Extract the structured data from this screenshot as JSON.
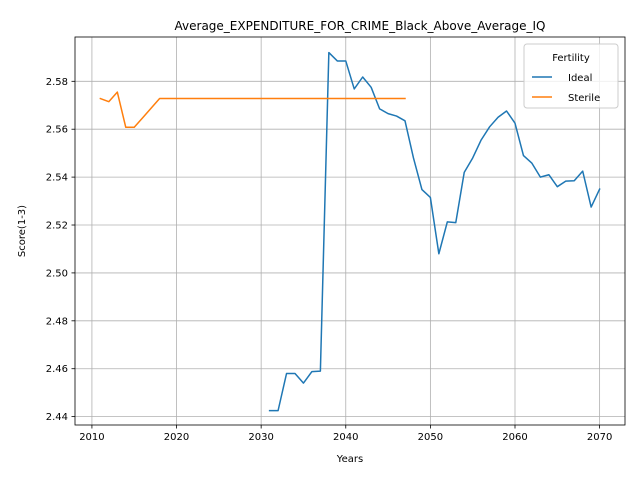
{
  "chart_data": {
    "type": "line",
    "title": "Average_EXPENDITURE_FOR_CRIME_Black_Above_Average_IQ",
    "xlabel": "Years",
    "ylabel": "Score(1-3)",
    "xlim": [
      2008,
      2073
    ],
    "ylim": [
      2.4365,
      2.5985
    ],
    "xticks": [
      2010,
      2020,
      2030,
      2040,
      2050,
      2060,
      2070
    ],
    "yticks": [
      2.44,
      2.46,
      2.48,
      2.5,
      2.52,
      2.54,
      2.56,
      2.58
    ],
    "ytick_labels": [
      "2.44",
      "2.46",
      "2.48",
      "2.50",
      "2.52",
      "2.54",
      "2.56",
      "2.58"
    ],
    "grid": true,
    "legend": {
      "title": "Fertility",
      "placement": "top-right"
    },
    "series": [
      {
        "name": "Ideal",
        "color": "#1f77b4",
        "x": [
          2031,
          2032,
          2033,
          2034,
          2035,
          2036,
          2037,
          2038,
          2039,
          2040,
          2041,
          2042,
          2043,
          2044,
          2045,
          2046,
          2047,
          2048,
          2049,
          2050,
          2051,
          2052,
          2053,
          2054,
          2055,
          2056,
          2057,
          2058,
          2059,
          2060,
          2061,
          2062,
          2063,
          2064,
          2065,
          2066,
          2067,
          2068,
          2069,
          2070
        ],
        "y": [
          2.4425,
          2.4425,
          2.458,
          2.458,
          2.454,
          2.4588,
          2.459,
          2.592,
          2.5885,
          2.5885,
          2.5768,
          2.5818,
          2.5775,
          2.5685,
          2.5665,
          2.5655,
          2.5635,
          2.548,
          2.5348,
          2.5315,
          2.508,
          2.5213,
          2.521,
          2.542,
          2.548,
          2.5555,
          2.561,
          2.565,
          2.5676,
          2.5625,
          2.549,
          2.5458,
          2.54,
          2.541,
          2.536,
          2.5383,
          2.5385,
          2.5425,
          2.5275,
          2.535
        ]
      },
      {
        "name": "Sterile",
        "color": "#ff7f0e",
        "x": [
          2011,
          2012,
          2013,
          2014,
          2015,
          2016,
          2017,
          2018,
          2019,
          2020,
          2021,
          2022,
          2023,
          2024,
          2025,
          2026,
          2027,
          2028,
          2029,
          2030,
          2031,
          2032,
          2033,
          2034,
          2035,
          2036,
          2037,
          2038,
          2039,
          2040,
          2041,
          2042,
          2043,
          2044,
          2045,
          2046,
          2047
        ],
        "y": [
          2.5728,
          2.5715,
          2.5755,
          2.5608,
          2.5608,
          2.5648,
          2.5688,
          2.5728,
          2.5728,
          2.5728,
          2.5728,
          2.5728,
          2.5728,
          2.5728,
          2.5728,
          2.5728,
          2.5728,
          2.5728,
          2.5728,
          2.5728,
          2.5728,
          2.5728,
          2.5728,
          2.5728,
          2.5728,
          2.5728,
          2.5728,
          2.5728,
          2.5728,
          2.5728,
          2.5728,
          2.5728,
          2.5728,
          2.5728,
          2.5728,
          2.5728,
          2.5728
        ]
      }
    ]
  }
}
